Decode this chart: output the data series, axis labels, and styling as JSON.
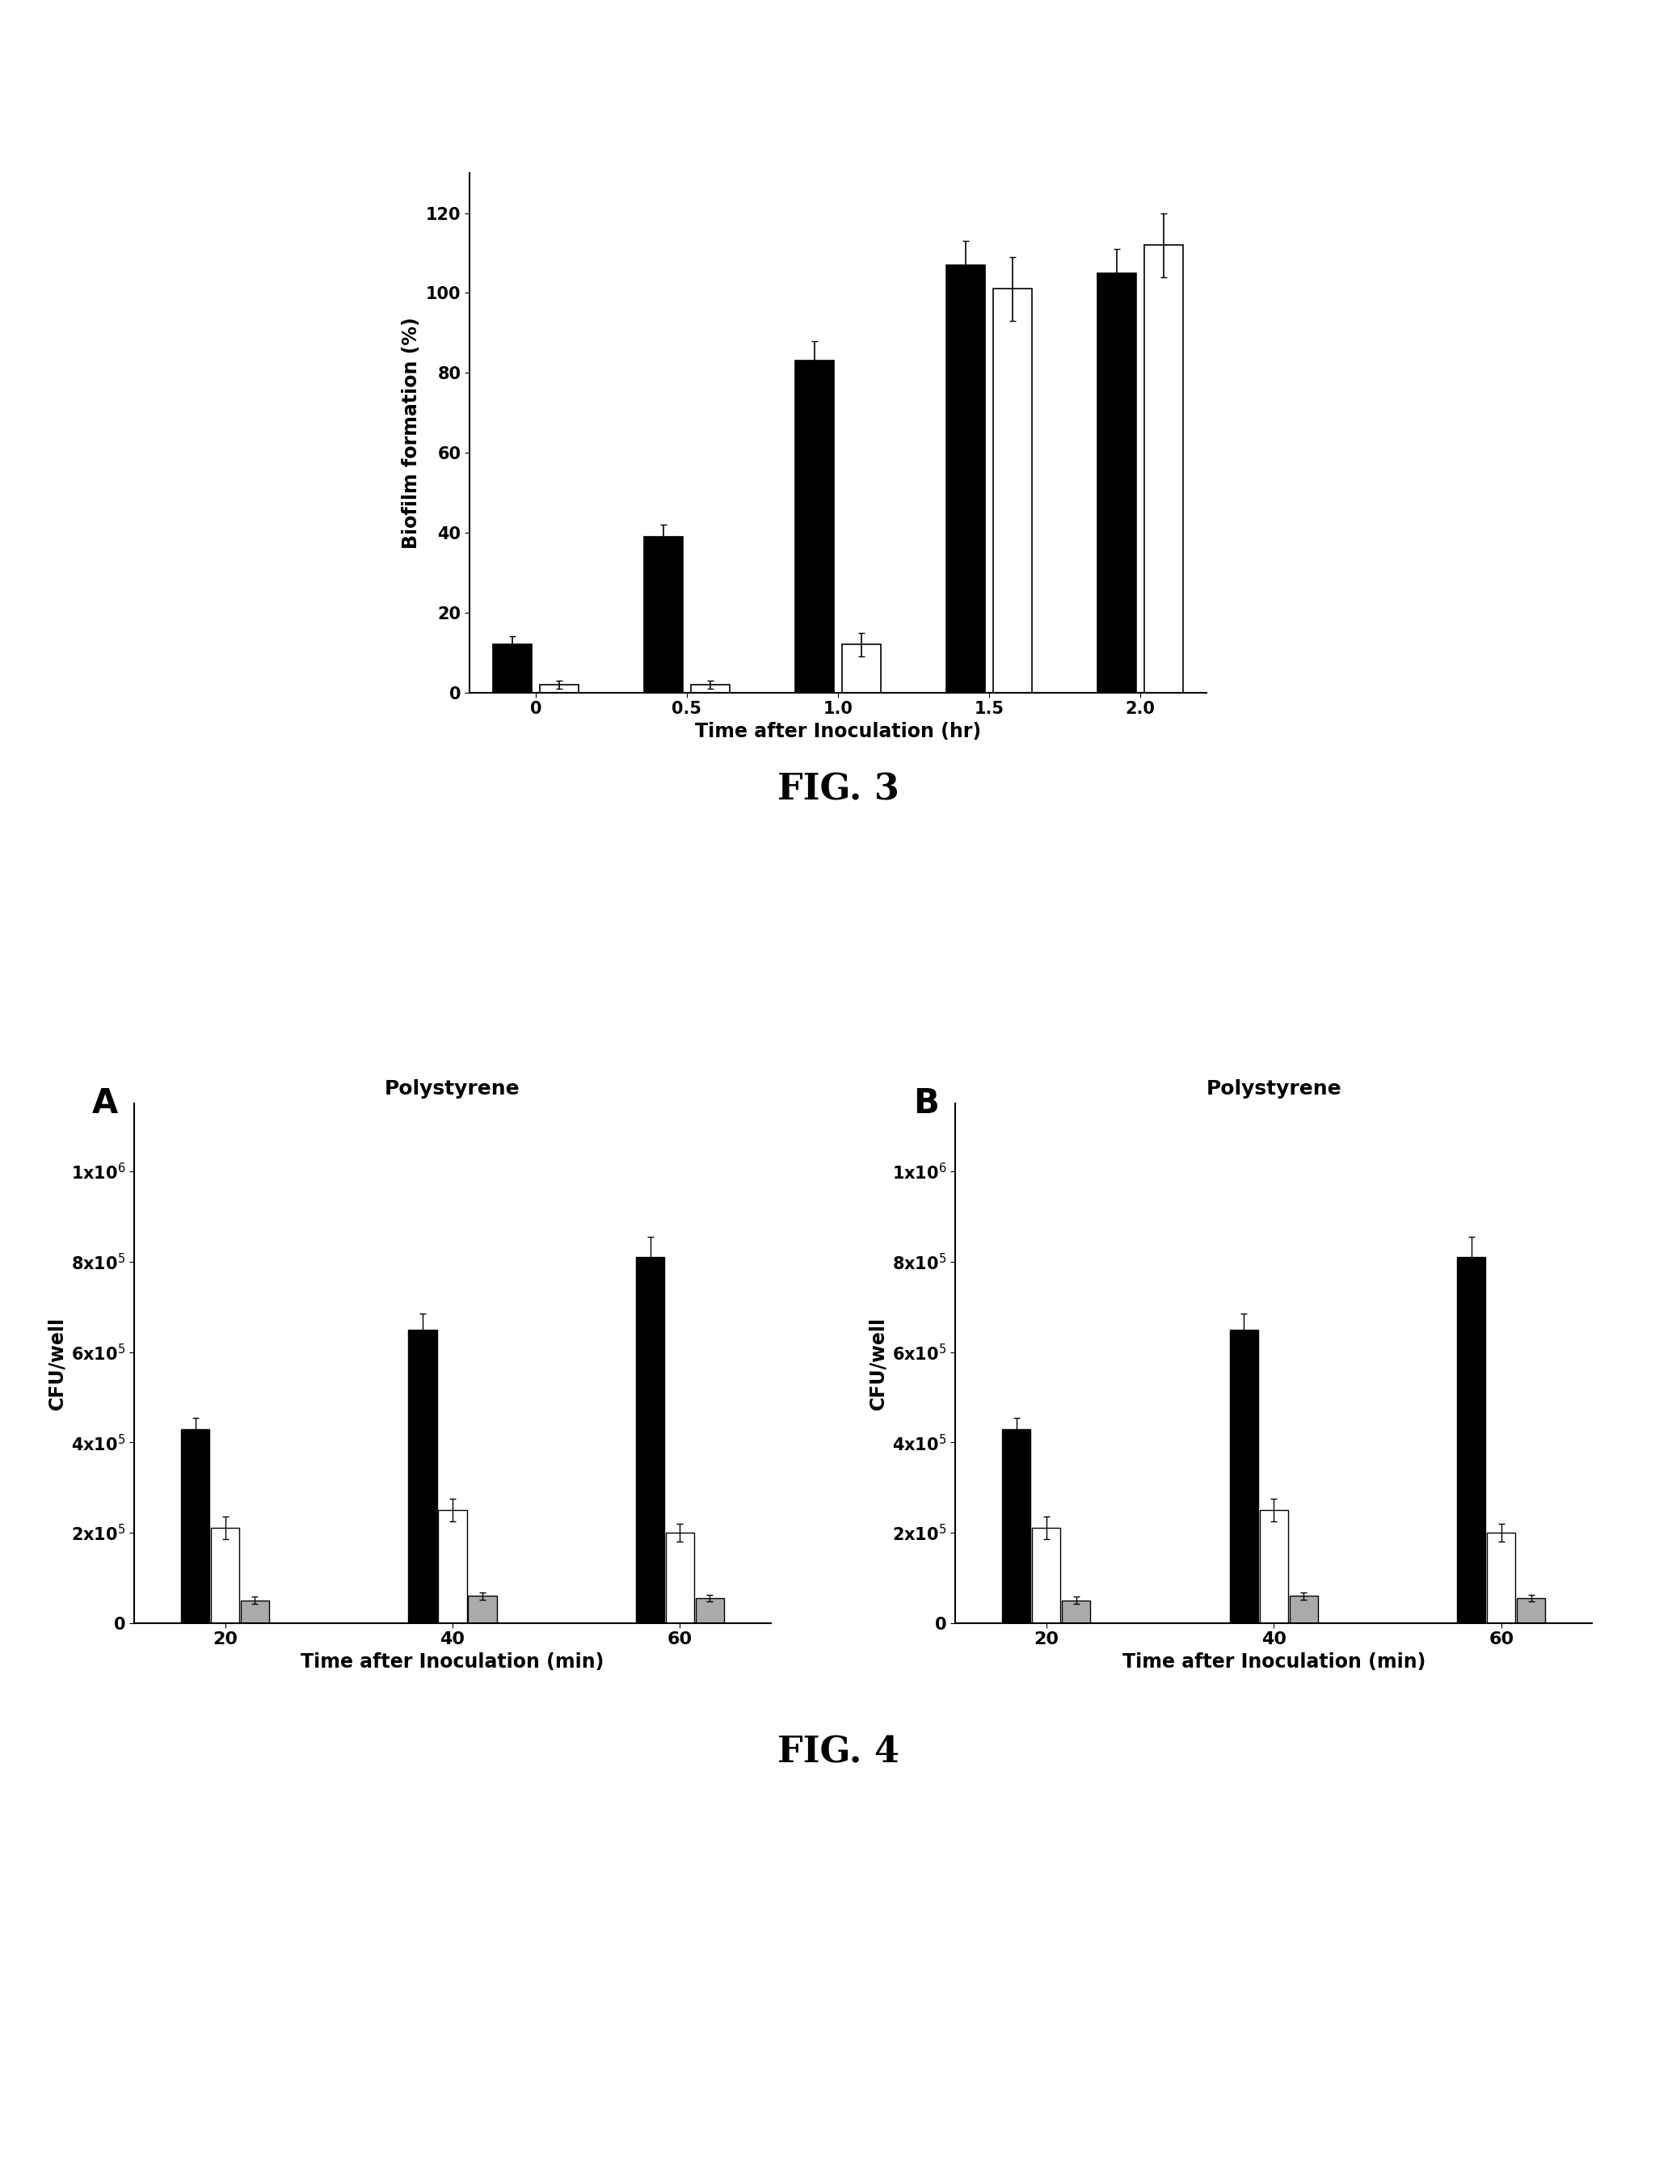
{
  "fig3": {
    "xlabel": "Time after Inoculation (hr)",
    "ylabel": "Biofilm formation (%)",
    "xticks": [
      0,
      0.5,
      1.0,
      1.5,
      2.0
    ],
    "xticklabels": [
      "0",
      "0.5",
      "1.0",
      "1.5",
      "2.0"
    ],
    "ylim": [
      0,
      130
    ],
    "yticks": [
      0,
      20,
      40,
      60,
      80,
      100,
      120
    ],
    "yticklabels": [
      "0",
      "20",
      "40",
      "60",
      "80",
      "100",
      "120"
    ],
    "black_values": [
      12,
      39,
      83,
      107,
      105
    ],
    "white_values": [
      2,
      2,
      12,
      101,
      112
    ],
    "black_errors": [
      2,
      3,
      5,
      6,
      6
    ],
    "white_errors": [
      1,
      1,
      3,
      8,
      8
    ],
    "bar_width": 0.13,
    "black_color": "#000000",
    "white_color": "#ffffff",
    "edge_color": "#000000"
  },
  "fig4": {
    "subplot_titles": [
      "Polystyrene",
      "Polystyrene"
    ],
    "xlabel": "Time after Inoculation (min)",
    "ylabel": "CFU/well",
    "xticks": [
      20,
      40,
      60
    ],
    "xticklabels": [
      "20",
      "40",
      "60"
    ],
    "ylim": [
      0,
      1150000.0
    ],
    "yticks": [
      0,
      200000.0,
      400000.0,
      600000.0,
      800000.0,
      1000000.0
    ],
    "yticklabels": [
      "0",
      "2x10⁵",
      "4x10⁵",
      "6x10⁵",
      "8x10⁵",
      "1x10⁶"
    ],
    "black_values_A": [
      430000.0,
      650000.0,
      810000.0
    ],
    "white_values_A": [
      210000.0,
      250000.0,
      200000.0
    ],
    "gray_values_A": [
      50000.0,
      60000.0,
      55000.0
    ],
    "black_errors_A": [
      25000.0,
      35000.0,
      45000.0
    ],
    "white_errors_A": [
      25000.0,
      25000.0,
      20000.0
    ],
    "gray_errors_A": [
      8000.0,
      8000.0,
      8000.0
    ],
    "black_values_B": [
      430000.0,
      650000.0,
      810000.0
    ],
    "white_values_B": [
      210000.0,
      250000.0,
      200000.0
    ],
    "gray_values_B": [
      50000.0,
      60000.0,
      55000.0
    ],
    "black_errors_B": [
      25000.0,
      35000.0,
      45000.0
    ],
    "white_errors_B": [
      25000.0,
      25000.0,
      20000.0
    ],
    "gray_errors_B": [
      8000.0,
      8000.0,
      8000.0
    ],
    "bar_width": 2.5,
    "black_color": "#000000",
    "white_color": "#ffffff",
    "gray_color": "#aaaaaa",
    "edge_color": "#000000"
  },
  "fig_label_fontsize": 32,
  "axis_label_fontsize": 17,
  "tick_fontsize": 15,
  "subplot_label_fontsize": 30,
  "fig3_label": "FIG. 3",
  "fig4_label": "FIG. 4",
  "background_color": "#ffffff"
}
